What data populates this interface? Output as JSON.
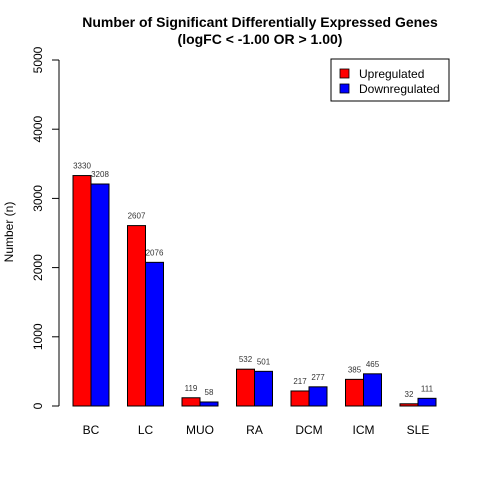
{
  "chart_data": {
    "type": "bar",
    "title": "Number of Significant Differentially Expressed Genes",
    "subtitle": "(logFC < -1.00 OR > 1.00)",
    "ylabel": "Number (n)",
    "xlabel": "",
    "ylim": [
      0,
      5000
    ],
    "yticks": [
      0,
      1000,
      2000,
      3000,
      4000,
      5000
    ],
    "categories": [
      "BC",
      "LC",
      "MUO",
      "RA",
      "DCM",
      "ICM",
      "SLE"
    ],
    "series": [
      {
        "name": "Upregulated",
        "color": "#ff0000",
        "values": [
          3330,
          2607,
          119,
          532,
          217,
          385,
          32
        ]
      },
      {
        "name": "Downregulated",
        "color": "#0000ff",
        "values": [
          3208,
          2076,
          58,
          501,
          277,
          465,
          111
        ]
      }
    ],
    "legend_position": "top-right",
    "grid": false
  }
}
